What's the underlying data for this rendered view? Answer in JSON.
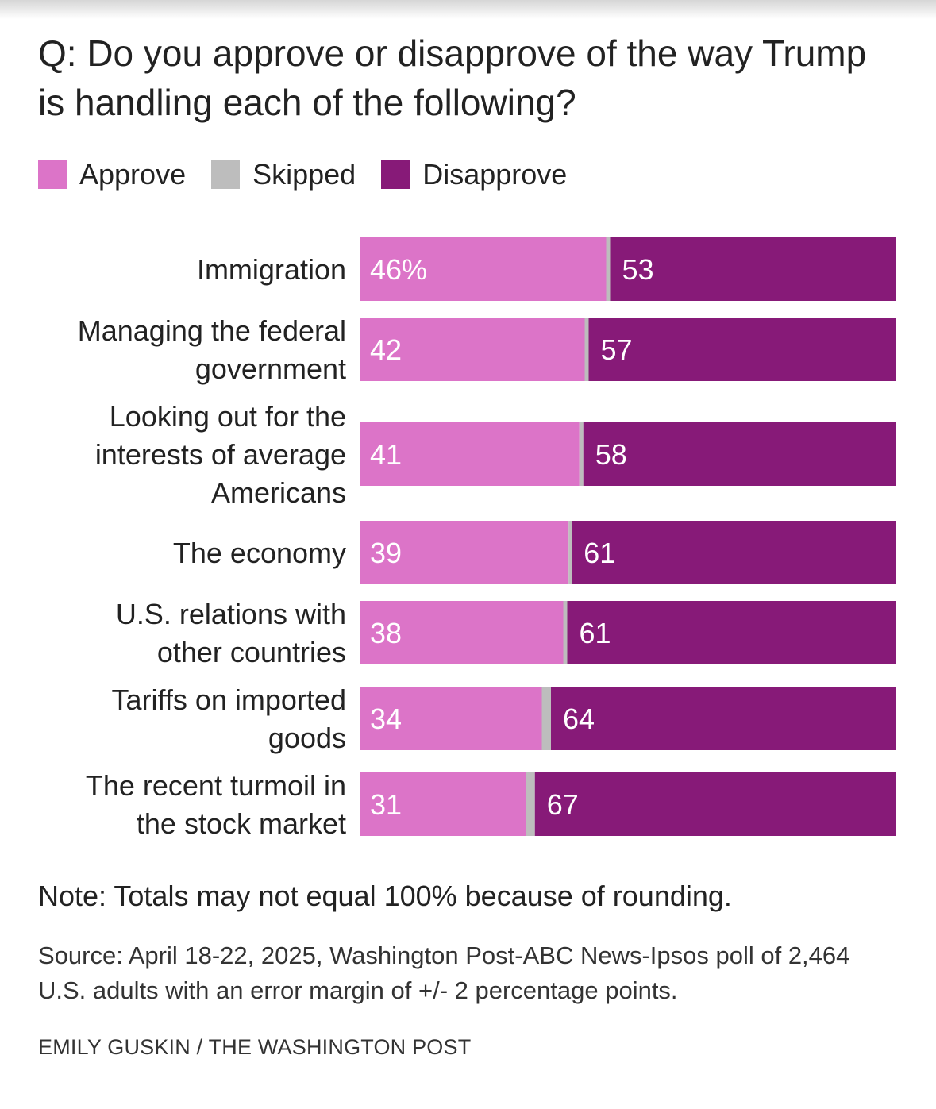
{
  "title": "Q: Do you approve or disapprove of the way Trump is handling each of the following?",
  "legend": [
    {
      "label": "Approve",
      "color": "#dc74c8"
    },
    {
      "label": "Skipped",
      "color": "#bdbdbd"
    },
    {
      "label": "Disapprove",
      "color": "#871a78"
    }
  ],
  "chart_data": {
    "type": "bar",
    "orientation": "horizontal",
    "stacked": true,
    "categories": [
      "Immigration",
      "Managing the federal government",
      "Looking out for the interests of average Americans",
      "The economy",
      "U.S. relations with other countries",
      "Tariffs on imported goods",
      "The recent turmoil in the stock market"
    ],
    "category_lines": [
      [
        "Immigration"
      ],
      [
        "Managing the federal",
        "government"
      ],
      [
        "Looking out for the",
        "interests of average",
        "Americans"
      ],
      [
        "The economy"
      ],
      [
        "U.S. relations with",
        "other countries"
      ],
      [
        "Tariffs on imported",
        "goods"
      ],
      [
        "The recent turmoil in",
        "the stock market"
      ]
    ],
    "series": [
      {
        "name": "Approve",
        "values": [
          46,
          42,
          41,
          39,
          38,
          34,
          31
        ],
        "labels": [
          "46%",
          "42",
          "41",
          "39",
          "38",
          "34",
          "31"
        ]
      },
      {
        "name": "Skipped",
        "values": [
          1,
          1,
          1,
          0,
          1,
          2,
          2
        ],
        "labels": [
          "",
          "",
          "",
          "",
          "",
          "",
          ""
        ]
      },
      {
        "name": "Disapprove",
        "values": [
          53,
          57,
          58,
          61,
          61,
          64,
          67
        ],
        "labels": [
          "53",
          "57",
          "58",
          "61",
          "61",
          "64",
          "67"
        ]
      }
    ],
    "xlim": [
      0,
      100
    ]
  },
  "note": "Note: Totals may not equal 100% because of rounding.",
  "source": "Source: April 18-22, 2025, Washington Post-ABC News-Ipsos poll of 2,464 U.S. adults with an error margin of +/- 2 percentage points.",
  "credit": "EMILY GUSKIN / THE WASHINGTON POST"
}
